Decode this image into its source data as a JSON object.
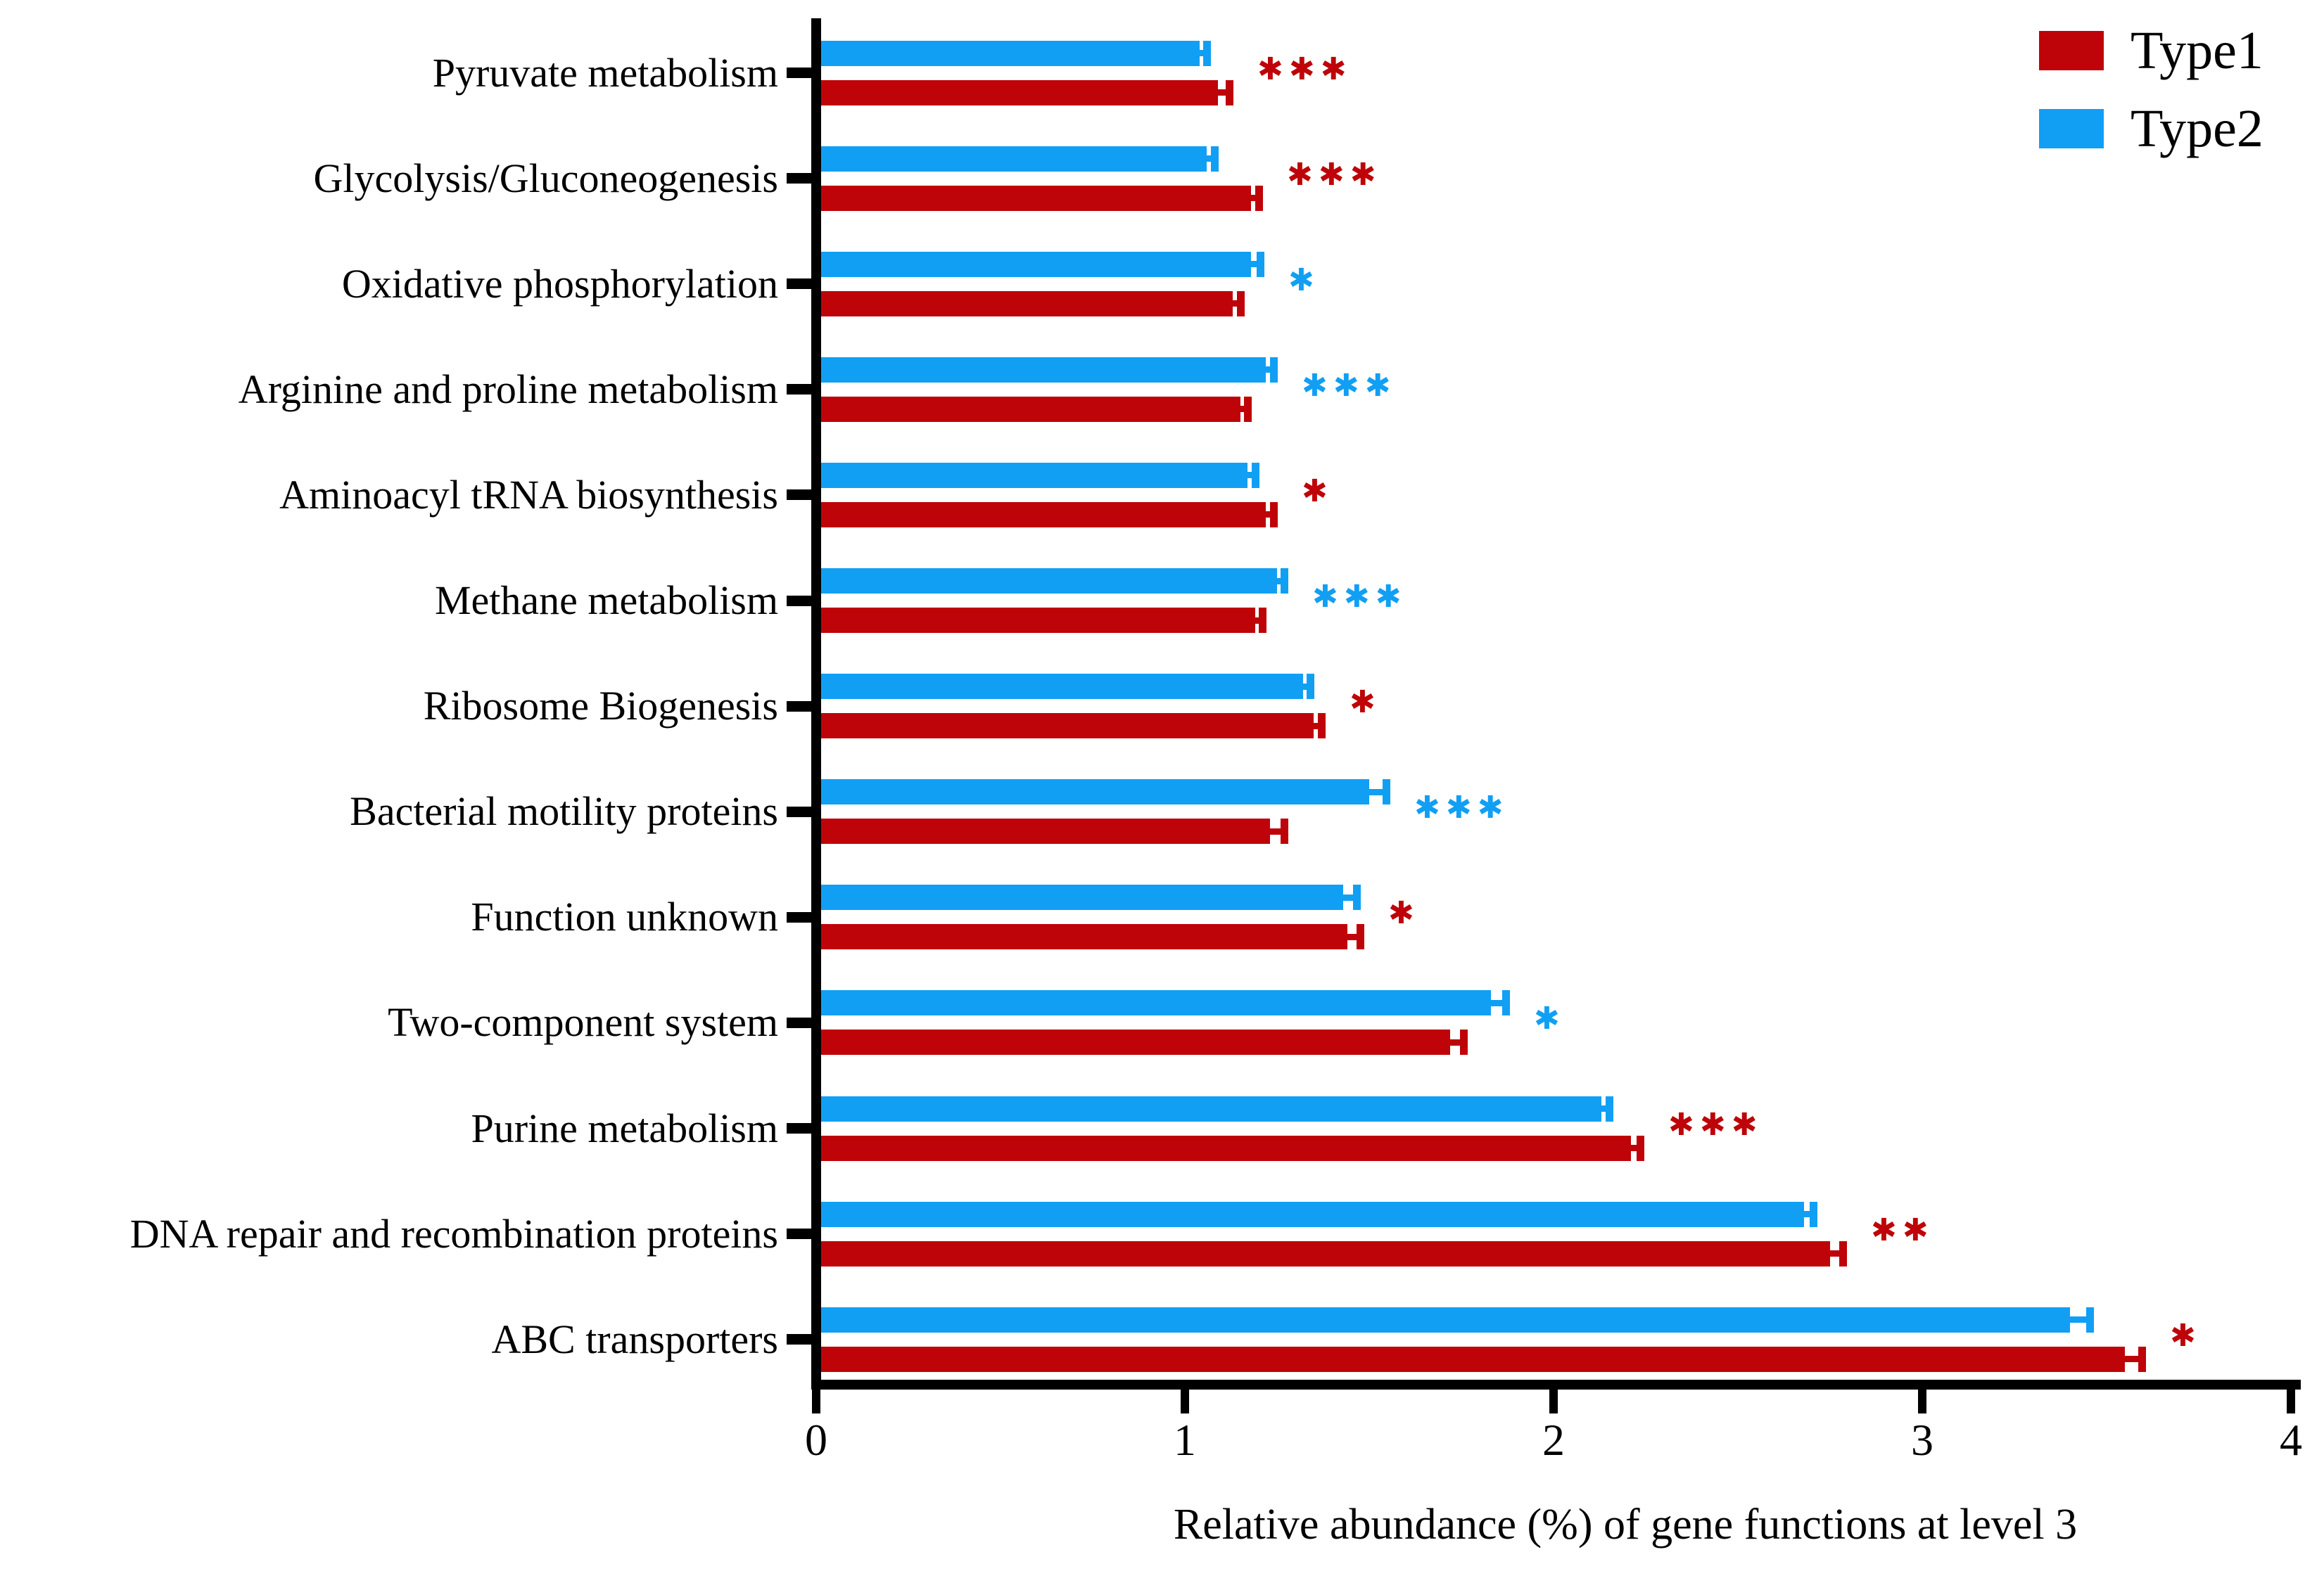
{
  "legend": {
    "position": "top-right",
    "items": [
      {
        "label": "Type1",
        "color": "#be0409"
      },
      {
        "label": "Type2",
        "color": "#119ff4"
      }
    ]
  },
  "axis": {
    "xlabel": "Relative abundance (%) of gene functions at level 3",
    "x_ticks": [
      "0",
      "1",
      "2",
      "3",
      "4"
    ]
  },
  "chart_data": {
    "type": "bar",
    "orientation": "horizontal",
    "title": "",
    "xlabel": "Relative abundance (%) of gene functions at level 3",
    "ylabel": "",
    "xlim": [
      0,
      4
    ],
    "x_tick_values": [
      0,
      1,
      2,
      3,
      4
    ],
    "grid": false,
    "legend_position": "top-right",
    "group_order_note": "Type2 bar drawn above Type1 bar in each category group",
    "categories": [
      "Pyruvate metabolism",
      "Glycolysis/Gluconeogenesis",
      "Oxidative phosphorylation",
      "Arginine and proline metabolism",
      "Aminoacyl tRNA biosynthesis",
      "Methane metabolism",
      "Ribosome Biogenesis",
      "Bacterial motility proteins",
      "Function unknown",
      "Two-component system",
      "Purine metabolism",
      "DNA repair and recombination proteins",
      "ABC transporters"
    ],
    "series": [
      {
        "name": "Type1",
        "color": "#be0409",
        "values": [
          1.09,
          1.18,
          1.13,
          1.15,
          1.22,
          1.19,
          1.35,
          1.23,
          1.44,
          1.72,
          2.21,
          2.75,
          3.55
        ],
        "errors": [
          0.03,
          0.02,
          0.02,
          0.02,
          0.02,
          0.02,
          0.02,
          0.04,
          0.035,
          0.035,
          0.025,
          0.035,
          0.045
        ]
      },
      {
        "name": "Type2",
        "color": "#119ff4",
        "values": [
          1.04,
          1.06,
          1.18,
          1.22,
          1.17,
          1.25,
          1.32,
          1.5,
          1.43,
          1.83,
          2.13,
          2.68,
          3.4
        ],
        "errors": [
          0.02,
          0.02,
          0.025,
          0.02,
          0.02,
          0.02,
          0.02,
          0.045,
          0.035,
          0.04,
          0.02,
          0.025,
          0.055
        ]
      }
    ],
    "significance": [
      {
        "stars": "***",
        "color": "#be0409"
      },
      {
        "stars": "***",
        "color": "#be0409"
      },
      {
        "stars": "*",
        "color": "#119ff4"
      },
      {
        "stars": "***",
        "color": "#119ff4"
      },
      {
        "stars": "*",
        "color": "#be0409"
      },
      {
        "stars": "***",
        "color": "#119ff4"
      },
      {
        "stars": "*",
        "color": "#be0409"
      },
      {
        "stars": "***",
        "color": "#119ff4"
      },
      {
        "stars": "*",
        "color": "#be0409"
      },
      {
        "stars": "*",
        "color": "#119ff4"
      },
      {
        "stars": "***",
        "color": "#be0409"
      },
      {
        "stars": "**",
        "color": "#be0409"
      },
      {
        "stars": "*",
        "color": "#be0409"
      }
    ]
  }
}
